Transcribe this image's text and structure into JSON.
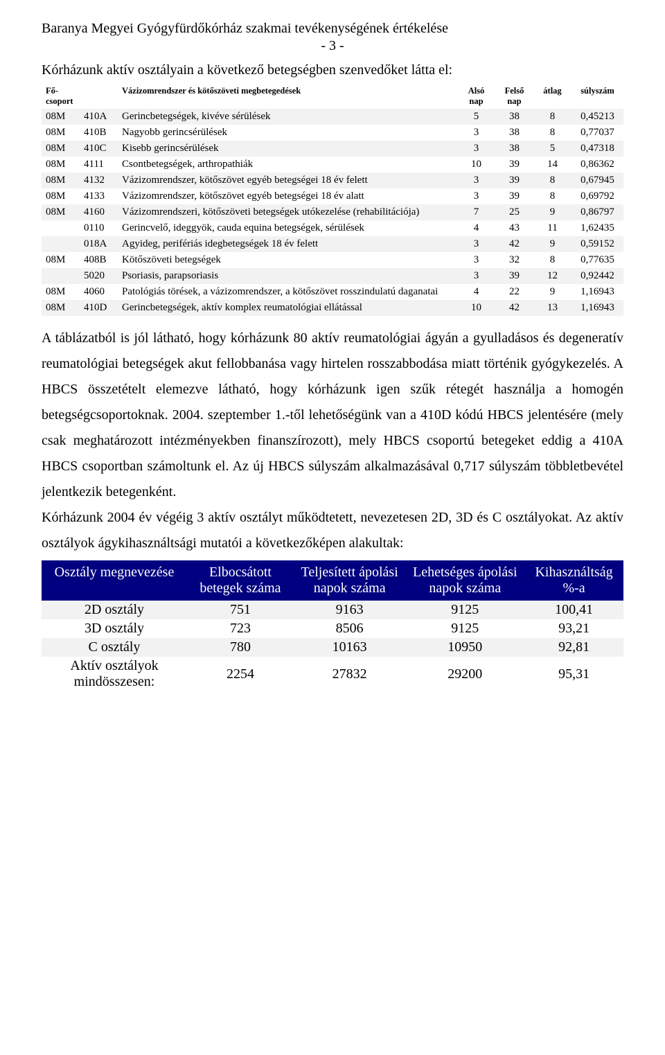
{
  "header": {
    "title": "Baranya Megyei Gyógyfürdőkórház szakmai tevékenységének értékelése",
    "page_num": "- 3 -"
  },
  "intro": "Kórházunk aktív osztályain a következő betegségben szenvedőket látta el:",
  "table1": {
    "columns": {
      "c1": "Fő-csoport",
      "c2": "",
      "c3": "Vázizomrendszer és kötőszöveti megbetegedések",
      "c4": "Alsó nap",
      "c5": "Felső nap",
      "c6": "átlag",
      "c7": "súlyszám"
    },
    "rows": [
      {
        "g": "08M",
        "code": "410A",
        "name": "Gerincbetegségek, kivéve sérülések",
        "a": "5",
        "b": "38",
        "c": "8",
        "d": "0,45213",
        "shade": true
      },
      {
        "g": "08M",
        "code": "410B",
        "name": "Nagyobb gerincsérülések",
        "a": "3",
        "b": "38",
        "c": "8",
        "d": "0,77037",
        "shade": false
      },
      {
        "g": "08M",
        "code": "410C",
        "name": "Kisebb gerincsérülések",
        "a": "3",
        "b": "38",
        "c": "5",
        "d": "0,47318",
        "shade": true
      },
      {
        "g": "08M",
        "code": "4111",
        "name": "Csontbetegségek, arthropathiák",
        "a": "10",
        "b": "39",
        "c": "14",
        "d": "0,86362",
        "shade": false
      },
      {
        "g": "08M",
        "code": "4132",
        "name": "Vázizomrendszer, kötőszövet egyéb betegségei 18 év felett",
        "a": "3",
        "b": "39",
        "c": "8",
        "d": "0,67945",
        "shade": true
      },
      {
        "g": "08M",
        "code": "4133",
        "name": "Vázizomrendszer, kötőszövet egyéb betegségei 18 év alatt",
        "a": "3",
        "b": "39",
        "c": "8",
        "d": "0,69792",
        "shade": false
      },
      {
        "g": "08M",
        "code": "4160",
        "name": "Vázizomrendszeri, kötőszöveti betegségek utókezelése (rehabilitációja)",
        "a": "7",
        "b": "25",
        "c": "9",
        "d": "0,86797",
        "shade": true
      },
      {
        "g": "",
        "code": "0110",
        "name": "Gerincvelő, ideggyök, cauda equina betegségek, sérülések",
        "a": "4",
        "b": "43",
        "c": "11",
        "d": "1,62435",
        "shade": false
      },
      {
        "g": "",
        "code": "018A",
        "name": "Agyideg, perifériás idegbetegségek 18 év felett",
        "a": "3",
        "b": "42",
        "c": "9",
        "d": "0,59152",
        "shade": true
      },
      {
        "g": "08M",
        "code": "408B",
        "name": "Kötőszöveti betegségek",
        "a": "3",
        "b": "32",
        "c": "8",
        "d": "0,77635",
        "shade": false
      },
      {
        "g": "",
        "code": "5020",
        "name": "Psoriasis, parapsoriasis",
        "a": "3",
        "b": "39",
        "c": "12",
        "d": "0,92442",
        "shade": true
      },
      {
        "g": "08M",
        "code": "4060",
        "name": "Patológiás törések, a vázizomrendszer, a kötőszövet rosszindulatú daganatai",
        "a": "4",
        "b": "22",
        "c": "9",
        "d": "1,16943",
        "shade": false
      },
      {
        "g": "08M",
        "code": "410D",
        "name": "Gerincbetegségek, aktív komplex reumatológiai ellátással",
        "a": "10",
        "b": "42",
        "c": "13",
        "d": "1,16943",
        "shade": true
      }
    ]
  },
  "paragraph": "A táblázatból is jól látható, hogy kórházunk 80 aktív reumatológiai ágyán a gyulladásos és degeneratív reumatológiai betegségek akut fellobbanása vagy hirtelen rosszabbodása miatt történik gyógykezelés. A HBCS összetételt elemezve látható, hogy kórházunk igen szűk rétegét használja a homogén betegségcsoportoknak. 2004. szeptember 1.-től lehetőségünk van a 410D kódú HBCS jelentésére (mely csak meghatározott intézményekben  finanszírozott), mely HBCS csoportú betegeket eddig a 410A  HBCS csoportban számoltunk el.  Az új HBCS súlyszám alkalmazásával 0,717 súlyszám többletbevétel jelentkezik betegenként.",
  "paragraph2": "Kórházunk 2004 év végéig 3 aktív osztályt működtetett, nevezetesen 2D, 3D és C osztályokat. Az aktív osztályok ágykihasználtsági mutatói a következőképen alakultak:",
  "table2": {
    "columns": {
      "c1": "Osztály megnevezése",
      "c2": "Elbocsátott betegek száma",
      "c3": "Teljesített ápolási napok száma",
      "c4": "Lehetséges ápolási napok száma",
      "c5": "Kihasználtság %-a"
    },
    "rows": [
      {
        "name": "2D osztály",
        "a": "751",
        "b": "9163",
        "c": "9125",
        "d": "100,41",
        "shade": true
      },
      {
        "name": "3D osztály",
        "a": "723",
        "b": "8506",
        "c": "9125",
        "d": "93,21",
        "shade": false
      },
      {
        "name": "C osztály",
        "a": "780",
        "b": "10163",
        "c": "10950",
        "d": "92,81",
        "shade": true
      },
      {
        "name": "Aktív osztályok mindösszesen:",
        "a": "2254",
        "b": "27832",
        "c": "29200",
        "d": "95,31",
        "shade": false
      }
    ]
  },
  "colors": {
    "header_bg": "#000080",
    "header_fg": "#ffffff",
    "shade_bg": "#f2f2f2",
    "text": "#000000"
  }
}
